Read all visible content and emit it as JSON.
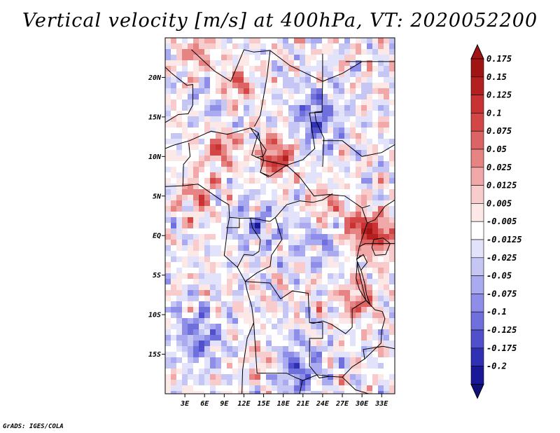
{
  "chart_data": {
    "type": "heatmap",
    "title": "Vertical velocity [m/s] at 400hPa, VT: 2020052200",
    "variable": "Vertical velocity",
    "units": "m/s",
    "level": "400hPa",
    "valid_time": "2020052200",
    "xlabel": "",
    "ylabel": "",
    "xlim": [
      0,
      35
    ],
    "ylim": [
      -20,
      25
    ],
    "x_ticks": [
      {
        "value": 3,
        "label": "3E"
      },
      {
        "value": 6,
        "label": "6E"
      },
      {
        "value": 9,
        "label": "9E"
      },
      {
        "value": 12,
        "label": "12E"
      },
      {
        "value": 15,
        "label": "15E"
      },
      {
        "value": 18,
        "label": "18E"
      },
      {
        "value": 21,
        "label": "21E"
      },
      {
        "value": 24,
        "label": "24E"
      },
      {
        "value": 27,
        "label": "27E"
      },
      {
        "value": 30,
        "label": "30E"
      },
      {
        "value": 33,
        "label": "33E"
      }
    ],
    "y_ticks": [
      {
        "value": 20,
        "label": "20N"
      },
      {
        "value": 15,
        "label": "15N"
      },
      {
        "value": 10,
        "label": "10N"
      },
      {
        "value": 5,
        "label": "5N"
      },
      {
        "value": 0,
        "label": "EQ"
      },
      {
        "value": -5,
        "label": "5S"
      },
      {
        "value": -10,
        "label": "10S"
      },
      {
        "value": -15,
        "label": "15S"
      }
    ],
    "colorbar": {
      "labels": [
        "0.175",
        "0.15",
        "0.125",
        "0.1",
        "0.075",
        "0.05",
        "0.025",
        "0.0125",
        "0.005",
        "-0.005",
        "-0.0125",
        "-0.025",
        "-0.05",
        "-0.075",
        "-0.1",
        "-0.125",
        "-0.175",
        "-0.2"
      ],
      "colors": [
        "#a01414",
        "#b42020",
        "#c83232",
        "#d24646",
        "#dc6464",
        "#e68484",
        "#f0a8a8",
        "#f8cccc",
        "#fde8e8",
        "#ffffff",
        "#e2e2fa",
        "#c6c6f4",
        "#aaaaf0",
        "#8e8ee8",
        "#7070dc",
        "#5050cc",
        "#3030b4",
        "#181898",
        "#10107a"
      ]
    },
    "features": {
      "positive_centers": [
        {
          "lon": 5,
          "lat": 5,
          "strength": 0.6
        },
        {
          "lon": 17,
          "lat": 10,
          "strength": 1.0
        },
        {
          "lon": 8.5,
          "lat": 11,
          "strength": 0.7
        },
        {
          "lon": 29.5,
          "lat": 1,
          "strength": 0.9
        },
        {
          "lon": 33,
          "lat": 0,
          "strength": 0.8
        },
        {
          "lon": 10.5,
          "lat": 19,
          "strength": 0.8
        },
        {
          "lon": 5,
          "lat": 23,
          "strength": 0.6
        },
        {
          "lon": 24,
          "lat": 3.5,
          "strength": 0.6
        },
        {
          "lon": 29.5,
          "lat": -8,
          "strength": 0.7
        },
        {
          "lon": 15,
          "lat": -16,
          "strength": 0.4
        }
      ],
      "negative_centers": [
        {
          "lon": 23,
          "lat": 15,
          "strength": 0.8
        },
        {
          "lon": 5,
          "lat": -13,
          "strength": 0.7
        },
        {
          "lon": 20,
          "lat": -17,
          "strength": 0.8
        },
        {
          "lon": 23,
          "lat": 0,
          "strength": 0.5
        },
        {
          "lon": 14,
          "lat": 1,
          "strength": 0.5
        },
        {
          "lon": 8,
          "lat": 18,
          "strength": 0.4
        }
      ]
    }
  },
  "footer": {
    "credit": "GrADS: IGES/COLA"
  }
}
